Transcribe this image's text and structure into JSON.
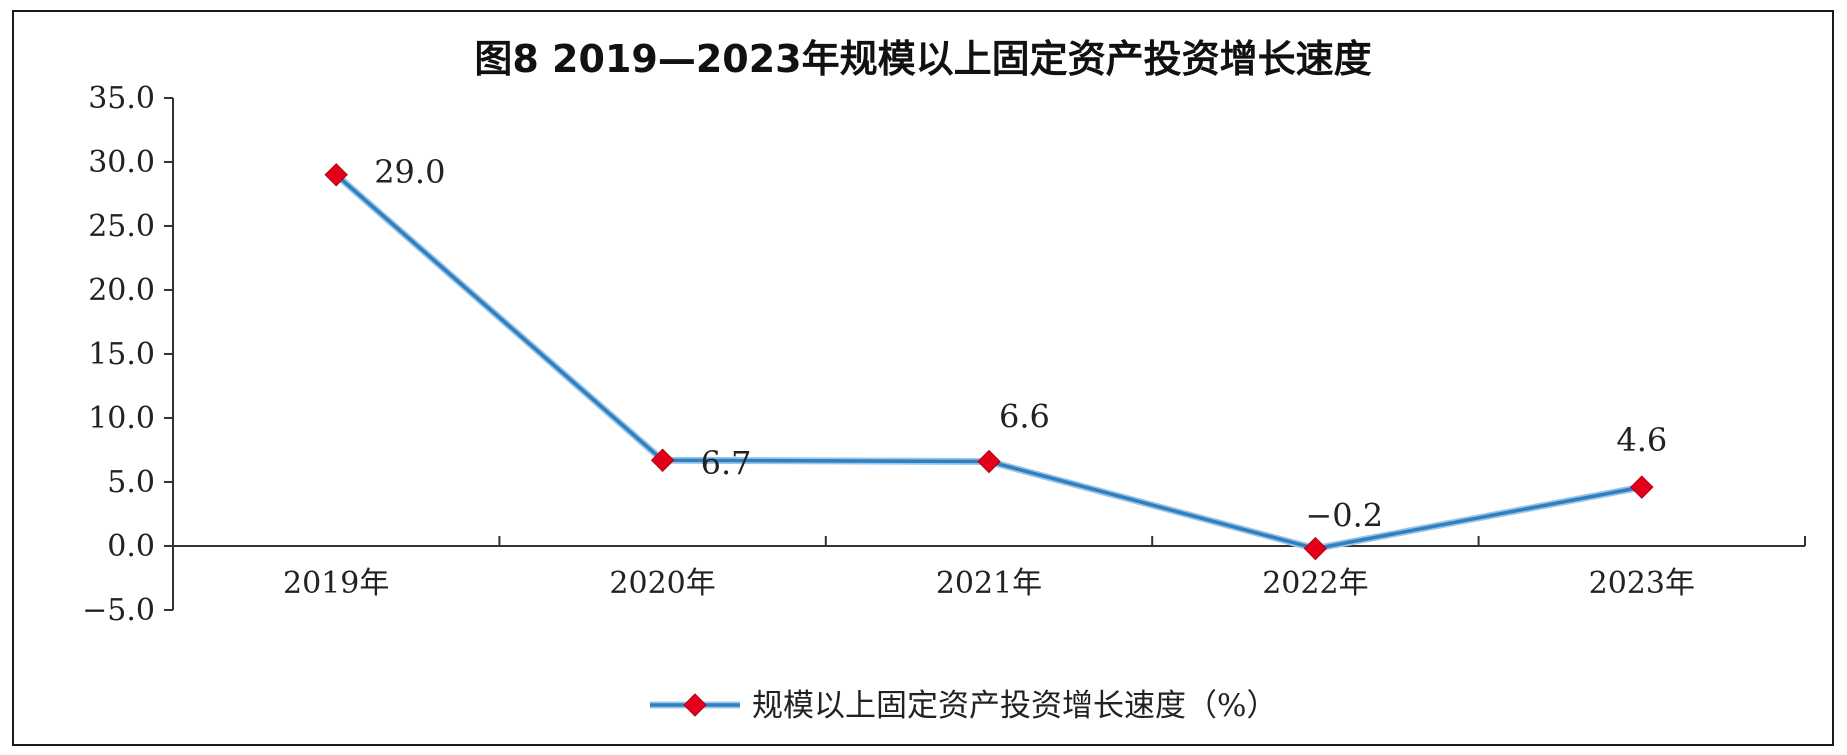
{
  "colors": {
    "line": "#2f7fc1",
    "marker": "#e3001b",
    "axis": "#333333",
    "text": "#222222"
  },
  "chart_data": {
    "type": "line",
    "title": "图8 2019—2023年规模以上固定资产投资增长速度",
    "categories": [
      "2019年",
      "2020年",
      "2021年",
      "2022年",
      "2023年"
    ],
    "series": [
      {
        "name": "规模以上固定资产投资增长速度（%）",
        "values": [
          29.0,
          6.7,
          6.6,
          -0.2,
          4.6
        ],
        "value_labels": [
          "29.0",
          "6.7",
          "6.6",
          "−0.2",
          "4.6"
        ],
        "marker": "diamond"
      }
    ],
    "ylim": [
      -5.0,
      35.0
    ],
    "y_ticks": [
      35.0,
      30.0,
      25.0,
      20.0,
      15.0,
      10.0,
      5.0,
      0.0,
      -5.0
    ],
    "y_tick_labels": [
      "35.0",
      "30.0",
      "25.0",
      "20.0",
      "15.0",
      "10.0",
      "5.0",
      "0.0",
      "−5.0"
    ],
    "xlabel": "",
    "ylabel": "",
    "grid": false,
    "legend_position": "bottom-center"
  }
}
